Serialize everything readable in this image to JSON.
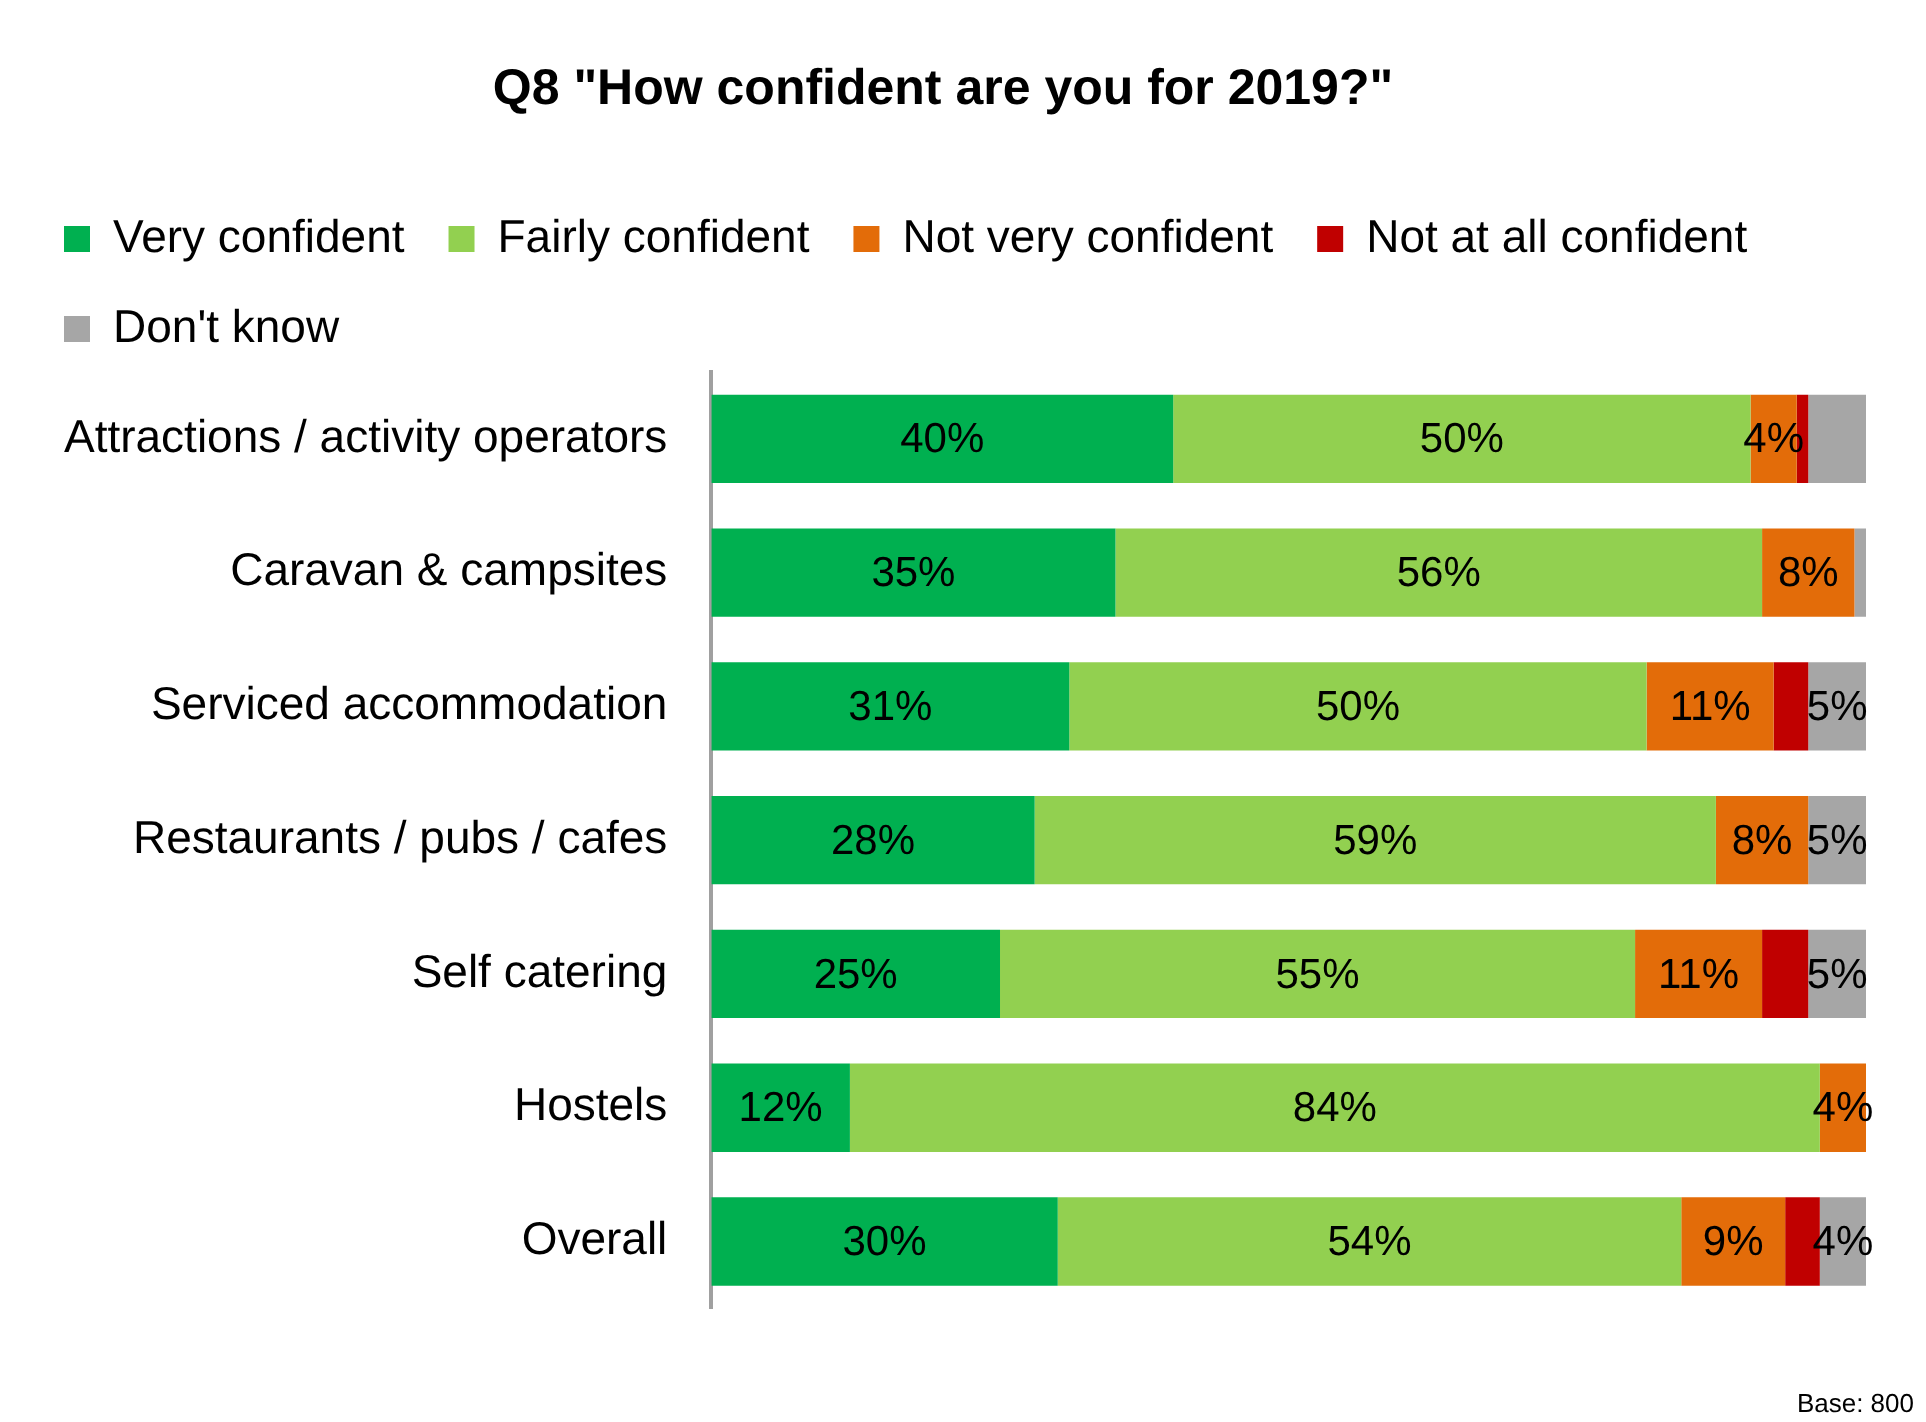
{
  "chart_data": {
    "type": "bar",
    "orientation": "horizontal",
    "stacked": true,
    "title": "Q8 \"How confident are you for 2019?\"",
    "categories": [
      "Attractions / activity operators",
      "Caravan & campsites",
      "Serviced accommodation",
      "Restaurants / pubs / cafes",
      "Self catering",
      "Hostels",
      "Overall"
    ],
    "series": [
      {
        "name": "Very confident",
        "color": "#00b050",
        "values": [
          40,
          35,
          31,
          28,
          25,
          12,
          30
        ],
        "value_labels": [
          "40%",
          "35%",
          "31%",
          "28%",
          "25%",
          "12%",
          "30%"
        ]
      },
      {
        "name": "Fairly confident",
        "color": "#92d050",
        "values": [
          50,
          56,
          50,
          59,
          55,
          84,
          54
        ],
        "value_labels": [
          "50%",
          "56%",
          "50%",
          "59%",
          "55%",
          "84%",
          "54%"
        ]
      },
      {
        "name": "Not very confident",
        "color": "#e36c09",
        "values": [
          4,
          8,
          11,
          8,
          11,
          4,
          9
        ],
        "value_labels": [
          "4%",
          "8%",
          "11%",
          "8%",
          "11%",
          "4%",
          "9%"
        ]
      },
      {
        "name": "Not at all confident",
        "color": "#c00000",
        "values": [
          1,
          0,
          3,
          0,
          4,
          0,
          3
        ],
        "value_labels": [
          null,
          null,
          null,
          null,
          null,
          null,
          null
        ]
      },
      {
        "name": "Don't know",
        "color": "#a6a6a6",
        "values": [
          5,
          1,
          5,
          5,
          5,
          0,
          4
        ],
        "value_labels": [
          null,
          null,
          "5%",
          "5%",
          "5%",
          null,
          "4%"
        ]
      }
    ],
    "xlim": [
      0,
      100
    ],
    "tick_labels": "y",
    "legend": "top",
    "annotations": [
      "Base: 800"
    ]
  }
}
